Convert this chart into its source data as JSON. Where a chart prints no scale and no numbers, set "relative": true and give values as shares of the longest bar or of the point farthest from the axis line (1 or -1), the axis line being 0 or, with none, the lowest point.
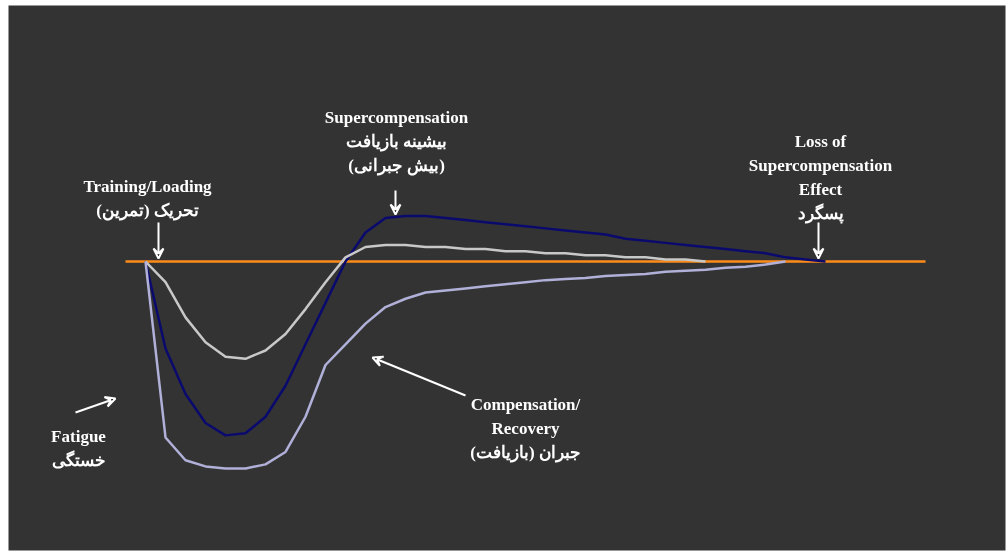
{
  "chart_data": {
    "type": "line",
    "relative": true,
    "grid": false,
    "categories": [
      null,
      null,
      null,
      null,
      null,
      null,
      null,
      null,
      null,
      null,
      null,
      null,
      null,
      null,
      null,
      null,
      null,
      null,
      null,
      null,
      null,
      null,
      null,
      null,
      null,
      null,
      null,
      null,
      null,
      null,
      null,
      null,
      null,
      null,
      null,
      null,
      null,
      null,
      null,
      null,
      null
    ],
    "series": [
      {
        "color": "#0a0a6e",
        "values": [
          null,
          0,
          -0.42,
          -0.64,
          -0.78,
          -0.84,
          -0.83,
          -0.75,
          -0.6,
          -0.4,
          -0.2,
          0.0,
          0.14,
          0.21,
          0.22,
          0.22,
          0.21,
          0.2,
          0.19,
          0.18,
          0.17,
          0.16,
          0.15,
          0.14,
          0.13,
          0.11,
          0.1,
          0.09,
          0.08,
          0.07,
          0.06,
          0.05,
          0.04,
          0.02,
          0.01,
          0.0,
          null,
          null,
          null,
          null,
          null
        ]
      },
      {
        "color": "#c8c8c8",
        "values": [
          null,
          0,
          -0.1,
          -0.27,
          -0.39,
          -0.46,
          -0.47,
          -0.43,
          -0.35,
          -0.23,
          -0.1,
          0.02,
          0.07,
          0.08,
          0.08,
          0.07,
          0.07,
          0.06,
          0.06,
          0.05,
          0.05,
          0.04,
          0.04,
          0.03,
          0.03,
          0.02,
          0.02,
          0.01,
          0.01,
          0.0,
          null,
          null,
          null,
          null,
          null,
          null,
          null,
          null,
          null,
          null,
          null
        ]
      },
      {
        "color": "#b0b0d8",
        "values": [
          null,
          0,
          -0.85,
          -0.96,
          -0.99,
          -1.0,
          -1.0,
          -0.98,
          -0.92,
          -0.75,
          -0.5,
          -0.4,
          -0.3,
          -0.22,
          -0.18,
          -0.15,
          -0.14,
          -0.13,
          -0.12,
          -0.11,
          -0.1,
          -0.09,
          -0.085,
          -0.08,
          -0.07,
          -0.065,
          -0.06,
          -0.05,
          -0.045,
          -0.04,
          -0.03,
          -0.025,
          -0.015,
          0.0,
          null,
          null,
          null,
          null,
          null,
          null,
          null
        ]
      }
    ],
    "ref_lines": [
      {
        "axis": "y",
        "value": 0,
        "color": "#ff8c1a"
      }
    ],
    "annotations": [
      "Supercompensation\nبیشینه بازیافت\n(بیش جبرانی)",
      "Training/Loading\nتحریک (تمرین)",
      "Loss of\nSupercompensation\nEffect\nپسگرد",
      "Fatigue\nخستگی",
      "Compensation/\nRecovery\nجبران (بازیافت)"
    ]
  }
}
